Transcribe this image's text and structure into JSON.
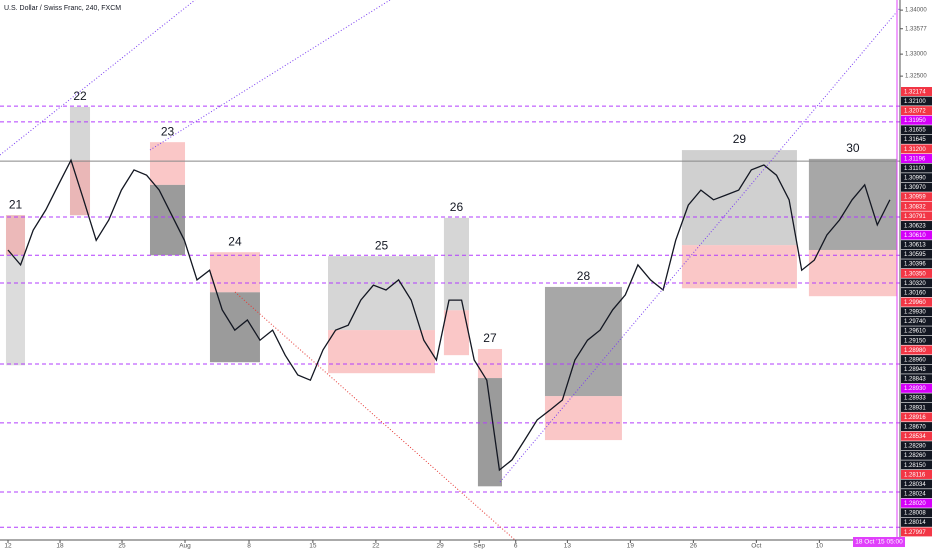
{
  "chart_data": {
    "type": "line",
    "title": "U.S. Dollar / Swiss Franc, 240, FXCM",
    "timestamp": "18 Oct '15  05:00",
    "xlim": [
      -0.635,
      70.8
    ],
    "ylim": [
      1.2196,
      1.3423
    ],
    "xticks": [
      {
        "value": 0,
        "label": "12"
      },
      {
        "value": 4.13,
        "label": "18"
      },
      {
        "value": 9.05,
        "label": "25"
      },
      {
        "value": 14.05,
        "label": "Aug"
      },
      {
        "value": 19.13,
        "label": "8"
      },
      {
        "value": 24.2,
        "label": "15"
      },
      {
        "value": 29.2,
        "label": "22"
      },
      {
        "value": 34.3,
        "label": "29"
      },
      {
        "value": 37.4,
        "label": "Sep"
      },
      {
        "value": 40.3,
        "label": "6"
      },
      {
        "value": 44.4,
        "label": "13"
      },
      {
        "value": 49.4,
        "label": "19"
      },
      {
        "value": 54.4,
        "label": "26"
      },
      {
        "value": 59.4,
        "label": "Oct"
      },
      {
        "value": 64.4,
        "label": "10"
      }
    ],
    "yticks": [
      {
        "value": 1.34,
        "label": "1.34000"
      },
      {
        "value": 1.33577,
        "label": "1.33577"
      },
      {
        "value": 1.33,
        "label": "1.33000"
      },
      {
        "value": 1.325,
        "label": "1.32500"
      }
    ],
    "series": [
      {
        "color": "#131722",
        "values": [
          1.2855,
          1.2821,
          1.29,
          1.2946,
          1.3003,
          1.3059,
          1.2969,
          1.2877,
          1.2923,
          1.2991,
          1.3037,
          1.3025,
          1.2991,
          1.2934,
          1.2877,
          1.2787,
          1.2809,
          1.2719,
          1.2673,
          1.2696,
          1.265,
          1.2673,
          1.2616,
          1.2571,
          1.2559,
          1.2628,
          1.2673,
          1.2684,
          1.2741,
          1.2775,
          1.2764,
          1.2787,
          1.2741,
          1.265,
          1.2605,
          1.2741,
          1.2741,
          1.2605,
          1.2559,
          1.2355,
          1.2378,
          1.2423,
          1.2469,
          1.2491,
          1.2514,
          1.2605,
          1.265,
          1.2673,
          1.2719,
          1.2753,
          1.2821,
          1.2787,
          1.2764,
          1.2877,
          1.2957,
          1.2991,
          1.2969,
          1.298,
          1.2991,
          1.3037,
          1.3048,
          1.3025,
          1.2969,
          1.2809,
          1.2832,
          1.2889,
          1.2923,
          1.2969,
          1.3003,
          1.2912,
          1.2969
        ]
      }
    ],
    "levels": [
      {
        "value": 1.3182,
        "color": "#b23cfd"
      },
      {
        "value": 1.3146,
        "color": "#b23cfd"
      },
      {
        "value": 1.3057,
        "color": "#888888"
      },
      {
        "value": 1.293,
        "color": "#b23cfd"
      },
      {
        "value": 1.2843,
        "color": "#b23cfd"
      },
      {
        "value": 1.278,
        "color": "#b23cfd"
      },
      {
        "value": 1.2596,
        "color": "#b23cfd"
      },
      {
        "value": 1.2462,
        "color": "#b23cfd"
      },
      {
        "value": 1.2305,
        "color": "#b23cfd"
      },
      {
        "value": 1.2225,
        "color": "#b23cfd"
      }
    ],
    "boxes": [
      {
        "label": "21",
        "x": [
          -0.16,
          1.35
        ],
        "gray": [
          1.2934,
          1.2593
        ],
        "red": [
          1.2934,
          1.2843
        ],
        "shade": "#d0d0d0"
      },
      {
        "label": "22",
        "x": [
          4.92,
          6.51
        ],
        "gray": [
          1.318,
          1.2934
        ],
        "red": [
          1.3059,
          1.2934
        ],
        "shade": "#c8c8c8"
      },
      {
        "label": "23",
        "x": [
          11.27,
          14.05
        ],
        "red": [
          1.31,
          1.3003
        ],
        "gray": [
          1.3003,
          1.2843
        ],
        "shade": "#7a7a7a"
      },
      {
        "label": "24",
        "x": [
          16.03,
          20
        ],
        "red": [
          1.285,
          1.2759
        ],
        "gray": [
          1.2759,
          1.26
        ],
        "shade": "#7a7a7a"
      },
      {
        "label": "25",
        "x": [
          25.4,
          33.89
        ],
        "gray": [
          1.2841,
          1.2673
        ],
        "red": [
          1.2673,
          1.2575
        ],
        "shade": "#c8c8c8"
      },
      {
        "label": "26",
        "x": [
          34.6,
          36.59
        ],
        "gray": [
          1.2928,
          1.2718
        ],
        "red": [
          1.2718,
          1.2616
        ],
        "shade": "#c8c8c8"
      },
      {
        "label": "27",
        "x": [
          37.3,
          39.21
        ],
        "red": [
          1.263,
          1.2564
        ],
        "gray": [
          1.2564,
          1.2318
        ],
        "shade": "#7a7a7a"
      },
      {
        "label": "28",
        "x": [
          42.62,
          48.73
        ],
        "gray": [
          1.2771,
          1.2523
        ],
        "red": [
          1.2523,
          1.2423
        ],
        "shade": "#8a8a8a"
      },
      {
        "label": "29",
        "x": [
          53.49,
          62.62
        ],
        "gray": [
          1.3082,
          1.2866
        ],
        "red": [
          1.2866,
          1.2768
        ],
        "shade": "#c0c0c0"
      },
      {
        "label": "30",
        "x": [
          63.57,
          70.56
        ],
        "gray": [
          1.3062,
          1.2855
        ],
        "red": [
          1.2855,
          1.275
        ],
        "shade": "#8a8a8a"
      }
    ],
    "price_tags": [
      {
        "value": 1.32174,
        "label": "1.32174",
        "color": "#f23645"
      },
      {
        "value": 1.321,
        "label": "1.32100",
        "color": "#131722"
      },
      {
        "value": 1.32072,
        "label": "1.32072",
        "color": "#f23645"
      },
      {
        "value": 1.3195,
        "label": "1.31950",
        "color": "#d500f9"
      },
      {
        "value": 1.31655,
        "label": "1.31655",
        "color": "#131722"
      },
      {
        "value": 1.31645,
        "label": "1.31645",
        "color": "#131722"
      },
      {
        "value": 1.312,
        "label": "1.31200",
        "color": "#f23645"
      },
      {
        "value": 1.31196,
        "label": "1.31196",
        "color": "#d500f9"
      },
      {
        "value": 1.311,
        "label": "1.31100",
        "color": "#131722"
      },
      {
        "value": 1.3099,
        "label": "1.30990",
        "color": "#131722"
      },
      {
        "value": 1.3097,
        "label": "1.30970",
        "color": "#131722"
      },
      {
        "value": 1.30959,
        "label": "1.30959",
        "color": "#f23645"
      },
      {
        "value": 1.30832,
        "label": "1.30832",
        "color": "#f23645"
      },
      {
        "value": 1.30791,
        "label": "1.30791",
        "color": "#f23645"
      },
      {
        "value": 1.30623,
        "label": "1.30623",
        "color": "#131722"
      },
      {
        "value": 1.3061,
        "label": "1.30610",
        "color": "#d500f9"
      },
      {
        "value": 1.30613,
        "label": "1.30613",
        "color": "#131722"
      },
      {
        "value": 1.30595,
        "label": "1.30595",
        "color": "#131722"
      },
      {
        "value": 1.30396,
        "label": "1.30396",
        "color": "#131722"
      },
      {
        "value": 1.3035,
        "label": "1.30350",
        "color": "#f23645"
      },
      {
        "value": 1.3032,
        "label": "1.30320",
        "color": "#131722"
      },
      {
        "value": 1.3016,
        "label": "1.30160",
        "color": "#131722"
      },
      {
        "value": 1.2996,
        "label": "1.29960",
        "color": "#f23645"
      },
      {
        "value": 1.2993,
        "label": "1.29930",
        "color": "#131722"
      },
      {
        "value": 1.2974,
        "label": "1.29740",
        "color": "#131722"
      },
      {
        "value": 1.2961,
        "label": "1.29610",
        "color": "#131722"
      },
      {
        "value": 1.2915,
        "label": "1.29150",
        "color": "#131722"
      },
      {
        "value": 1.2898,
        "label": "1.28980",
        "color": "#f23645"
      },
      {
        "value": 1.2896,
        "label": "1.28960",
        "color": "#131722"
      },
      {
        "value": 1.28943,
        "label": "1.28943",
        "color": "#131722"
      },
      {
        "value": 1.28843,
        "label": "1.28843",
        "color": "#131722"
      },
      {
        "value": 1.2893,
        "label": "1.28930",
        "color": "#d500f9"
      },
      {
        "value": 1.28933,
        "label": "1.28933",
        "color": "#131722"
      },
      {
        "value": 1.28931,
        "label": "1.28931",
        "color": "#131722"
      },
      {
        "value": 1.28916,
        "label": "1.28916",
        "color": "#f23645"
      },
      {
        "value": 1.2867,
        "label": "1.28670",
        "color": "#131722"
      },
      {
        "value": 1.28534,
        "label": "1.28534",
        "color": "#f23645"
      },
      {
        "value": 1.2828,
        "label": "1.28280",
        "color": "#131722"
      },
      {
        "value": 1.2826,
        "label": "1.28260",
        "color": "#131722"
      },
      {
        "value": 1.2815,
        "label": "1.28150",
        "color": "#131722"
      },
      {
        "value": 1.28116,
        "label": "1.28116",
        "color": "#f23645"
      },
      {
        "value": 1.28034,
        "label": "1.28034",
        "color": "#131722"
      },
      {
        "value": 1.28024,
        "label": "1.28024",
        "color": "#131722"
      },
      {
        "value": 1.2802,
        "label": "1.28020",
        "color": "#d500f9"
      },
      {
        "value": 1.28008,
        "label": "1.28008",
        "color": "#131722"
      },
      {
        "value": 1.28014,
        "label": "1.28014",
        "color": "#131722"
      },
      {
        "value": 1.27997,
        "label": "1.27997",
        "color": "#f23645"
      }
    ]
  }
}
